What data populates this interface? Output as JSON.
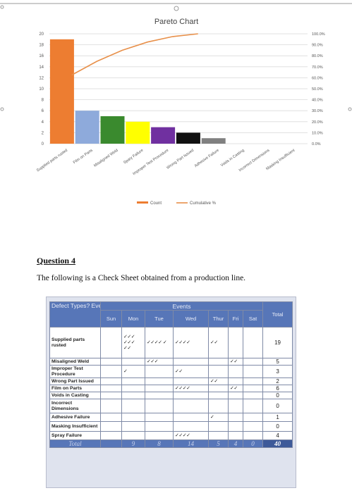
{
  "chart_data": {
    "type": "bar",
    "title": "Pareto Chart",
    "categories": [
      "Supplied parts rusted",
      "Film on Parts",
      "Misaligned Weld",
      "Spary Failure",
      "Improper Test Procedure",
      "Wrong Part Issued",
      "Adhesive Failure",
      "Voids in Casting",
      "Incorrect Dimensions",
      "Masking Insufficient"
    ],
    "series": [
      {
        "name": "Count",
        "values": [
          19,
          6,
          5,
          4,
          3,
          2,
          1,
          0,
          0,
          0
        ],
        "color": "#ed7d31"
      },
      {
        "name": "Cumulative %",
        "values": [
          47.5,
          62.5,
          75.0,
          85.0,
          92.5,
          97.5,
          100.0,
          100.0,
          100.0,
          100.0
        ],
        "color": "#e8904a"
      }
    ],
    "bar_colors": [
      "#ed7d31",
      "#8eaadb",
      "#3a8a2e",
      "#ffff00",
      "#7030a0",
      "#111111",
      "#808080",
      "#ffffff",
      "#ffffff",
      "#ffffff"
    ],
    "ylim": [
      0,
      20
    ],
    "y2lim": [
      0,
      100
    ],
    "yticks": [
      "0",
      "2",
      "4",
      "6",
      "8",
      "10",
      "12",
      "14",
      "16",
      "18",
      "20"
    ],
    "y2ticks": [
      "0.0%",
      "10.0%",
      "20.0%",
      "30.0%",
      "40.0%",
      "50.0%",
      "60.0%",
      "70.0%",
      "80.0%",
      "90.0%",
      "100.0%"
    ],
    "legend": [
      "Count",
      "Cumulative %"
    ],
    "grid": true,
    "legend_position": "bottom"
  },
  "question": {
    "title": "Question 4",
    "body": "The following is a Check Sheet obtained from a production line."
  },
  "check_sheet": {
    "header_defect": "Defect Types? Event occurrence",
    "header_events": "Events",
    "header_total": "Total",
    "days": [
      "Sun",
      "Mon",
      "Tue",
      "Wed",
      "Thur",
      "Fri",
      "Sat"
    ],
    "rows": [
      {
        "defect": "Supplied parts rusted",
        "marks": [
          "",
          "✓✓✓ ✓✓✓ ✓✓",
          "✓✓✓✓ ✓",
          "✓✓✓✓",
          "✓✓",
          "",
          ""
        ],
        "total": "19"
      },
      {
        "defect": "Misaligned Weld",
        "marks": [
          "",
          "",
          "✓✓✓",
          "",
          "",
          "✓✓",
          ""
        ],
        "total": "5"
      },
      {
        "defect": "Improper Test Procedure",
        "marks": [
          "",
          "✓",
          "",
          "✓✓",
          "",
          "",
          ""
        ],
        "total": "3"
      },
      {
        "defect": "Wrong Part Issued",
        "marks": [
          "",
          "",
          "",
          "",
          "✓✓",
          "",
          ""
        ],
        "total": "2"
      },
      {
        "defect": "Film on Parts",
        "marks": [
          "",
          "",
          "",
          "✓✓✓✓",
          "",
          "✓✓",
          ""
        ],
        "total": "6"
      },
      {
        "defect": "Voids in Casting",
        "marks": [
          "",
          "",
          "",
          "",
          "",
          "",
          ""
        ],
        "total": "0"
      },
      {
        "defect": "Incorrect Dimensions",
        "marks": [
          "",
          "",
          "",
          "",
          "",
          "",
          ""
        ],
        "total": "0"
      },
      {
        "defect": "Adhesive Failure",
        "marks": [
          "",
          "",
          "",
          "",
          "✓",
          "",
          ""
        ],
        "total": "1"
      },
      {
        "defect": "Masking Insufficient",
        "marks": [
          "",
          "",
          "",
          "",
          "",
          "",
          ""
        ],
        "total": "0"
      },
      {
        "defect": "Spray Failure",
        "marks": [
          "",
          "",
          "",
          "✓✓✓✓",
          "",
          "",
          ""
        ],
        "total": "4"
      }
    ],
    "totals_label": "Total",
    "totals": [
      "",
      "9",
      "8",
      "14",
      "5",
      "4",
      "0"
    ],
    "grand_total": "40"
  }
}
